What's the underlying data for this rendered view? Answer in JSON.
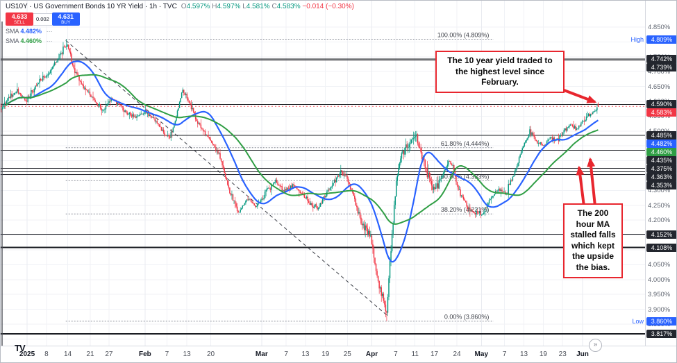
{
  "header": {
    "symbol_title": "US10Y · US Government Bonds 10 YR Yield · 1h · TVC",
    "ohlc": {
      "oL": "O",
      "o": "4.597%",
      "hL": "H",
      "h": "4.597%",
      "lL": "L",
      "l": "4.581%",
      "cL": "C",
      "c": "4.583%",
      "chg": "−0.014 (−0.30%)"
    },
    "sell_price": "4.633",
    "sell_label": "SELL",
    "spread": "0.002",
    "buy_price": "4.631",
    "buy_label": "BUY",
    "sma100_label": "SMA",
    "sma100_value": "4.482%",
    "sma200_label": "SMA",
    "sma200_value": "4.460%",
    "sma_options_icon": "⋯"
  },
  "annotations": {
    "top_text": "The 10 year yield traded to the highest level since February.",
    "side_text": "The 200 hour MA stalled falls which kept the upside the bias."
  },
  "footer": {
    "logo_text": "TV",
    "goto_icon": "»"
  },
  "colors": {
    "up": "#089981",
    "down": "#f23645",
    "sma100": "#2962ff",
    "sma200": "#2f9e44",
    "level": "#1a1c22",
    "badge_bg": "#23262e",
    "current_bg": "#f23645",
    "highlow": "#2962ff",
    "annotation": "#e8262e",
    "grid": "#f0f2f6",
    "fib": "#8a8d98",
    "trend": "#3a3d45"
  },
  "chart_data": {
    "type": "candlestick",
    "title": "US10Y US Government Bonds 10 YR Yield",
    "timeframe": "1h",
    "exchange": "TVC",
    "unit": "%",
    "current": {
      "open": 4.597,
      "high": 4.597,
      "low": 4.581,
      "price": 4.583,
      "change": -0.014,
      "change_pct": -0.3
    },
    "session_high": 4.809,
    "session_low": 3.86,
    "high_label": "High",
    "low_label": "Low",
    "sma100": 4.482,
    "sma200": 4.46,
    "y_axis": {
      "min": 3.85,
      "max": 4.85,
      "step": 0.05,
      "grid": true
    },
    "horizontal_levels": [
      4.742,
      4.739,
      4.59,
      4.485,
      4.435,
      4.375,
      4.363,
      4.353,
      4.152,
      4.108,
      3.817
    ],
    "fib": {
      "from": 4.809,
      "to": 3.86,
      "levels": [
        {
          "pct": "100.00%",
          "value": 4.809
        },
        {
          "pct": "61.80%",
          "value": 4.444
        },
        {
          "pct": "50.00%",
          "value": 4.333
        },
        {
          "pct": "38.20%",
          "value": 4.221
        },
        {
          "pct": "0.00%",
          "value": 3.86
        }
      ]
    },
    "trendline": {
      "x1f": 0.101,
      "v1": 4.805,
      "x2f": 0.602,
      "v2": 3.875
    },
    "x_ticks": [
      {
        "label": "2025",
        "f": 0.041,
        "bold": true
      },
      {
        "label": "8",
        "f": 0.071
      },
      {
        "label": "14",
        "f": 0.104
      },
      {
        "label": "21",
        "f": 0.139
      },
      {
        "label": "27",
        "f": 0.168
      },
      {
        "label": "Feb",
        "f": 0.224,
        "bold": true
      },
      {
        "label": "7",
        "f": 0.258
      },
      {
        "label": "13",
        "f": 0.289
      },
      {
        "label": "20",
        "f": 0.326
      },
      {
        "label": "Mar",
        "f": 0.405,
        "bold": true
      },
      {
        "label": "7",
        "f": 0.443
      },
      {
        "label": "13",
        "f": 0.473
      },
      {
        "label": "19",
        "f": 0.504
      },
      {
        "label": "25",
        "f": 0.538
      },
      {
        "label": "Apr",
        "f": 0.576,
        "bold": true
      },
      {
        "label": "7",
        "f": 0.613
      },
      {
        "label": "11",
        "f": 0.643
      },
      {
        "label": "17",
        "f": 0.673
      },
      {
        "label": "24",
        "f": 0.708
      },
      {
        "label": "May",
        "f": 0.746,
        "bold": true
      },
      {
        "label": "7",
        "f": 0.782
      },
      {
        "label": "13",
        "f": 0.812
      },
      {
        "label": "19",
        "f": 0.842
      },
      {
        "label": "23",
        "f": 0.872
      },
      {
        "label": "Jun",
        "f": 0.903,
        "bold": true
      }
    ],
    "price_path": [
      [
        0.0,
        4.575
      ],
      [
        0.012,
        4.61
      ],
      [
        0.025,
        4.635
      ],
      [
        0.04,
        4.6
      ],
      [
        0.055,
        4.655
      ],
      [
        0.072,
        4.69
      ],
      [
        0.086,
        4.73
      ],
      [
        0.098,
        4.78
      ],
      [
        0.104,
        4.79
      ],
      [
        0.112,
        4.72
      ],
      [
        0.122,
        4.67
      ],
      [
        0.132,
        4.64
      ],
      [
        0.141,
        4.615
      ],
      [
        0.152,
        4.585
      ],
      [
        0.161,
        4.57
      ],
      [
        0.17,
        4.61
      ],
      [
        0.182,
        4.595
      ],
      [
        0.196,
        4.56
      ],
      [
        0.21,
        4.545
      ],
      [
        0.224,
        4.565
      ],
      [
        0.238,
        4.54
      ],
      [
        0.252,
        4.495
      ],
      [
        0.262,
        4.475
      ],
      [
        0.272,
        4.545
      ],
      [
        0.282,
        4.64
      ],
      [
        0.292,
        4.6
      ],
      [
        0.303,
        4.54
      ],
      [
        0.315,
        4.5
      ],
      [
        0.327,
        4.46
      ],
      [
        0.34,
        4.42
      ],
      [
        0.355,
        4.295
      ],
      [
        0.369,
        4.225
      ],
      [
        0.383,
        4.275
      ],
      [
        0.398,
        4.245
      ],
      [
        0.412,
        4.3
      ],
      [
        0.426,
        4.33
      ],
      [
        0.44,
        4.3
      ],
      [
        0.453,
        4.32
      ],
      [
        0.466,
        4.29
      ],
      [
        0.48,
        4.255
      ],
      [
        0.492,
        4.24
      ],
      [
        0.505,
        4.29
      ],
      [
        0.517,
        4.33
      ],
      [
        0.528,
        4.36
      ],
      [
        0.54,
        4.33
      ],
      [
        0.552,
        4.25
      ],
      [
        0.563,
        4.18
      ],
      [
        0.574,
        4.15
      ],
      [
        0.584,
        4.01
      ],
      [
        0.592,
        3.95
      ],
      [
        0.599,
        3.89
      ],
      [
        0.606,
        4.12
      ],
      [
        0.614,
        4.33
      ],
      [
        0.622,
        4.42
      ],
      [
        0.632,
        4.45
      ],
      [
        0.644,
        4.49
      ],
      [
        0.656,
        4.4
      ],
      [
        0.666,
        4.33
      ],
      [
        0.674,
        4.3
      ],
      [
        0.686,
        4.355
      ],
      [
        0.696,
        4.4
      ],
      [
        0.702,
        4.38
      ],
      [
        0.71,
        4.3
      ],
      [
        0.722,
        4.255
      ],
      [
        0.734,
        4.225
      ],
      [
        0.748,
        4.22
      ],
      [
        0.762,
        4.28
      ],
      [
        0.772,
        4.3
      ],
      [
        0.784,
        4.29
      ],
      [
        0.796,
        4.35
      ],
      [
        0.806,
        4.42
      ],
      [
        0.814,
        4.465
      ],
      [
        0.822,
        4.5
      ],
      [
        0.832,
        4.462
      ],
      [
        0.843,
        4.45
      ],
      [
        0.853,
        4.48
      ],
      [
        0.863,
        4.47
      ],
      [
        0.874,
        4.5
      ],
      [
        0.884,
        4.52
      ],
      [
        0.895,
        4.51
      ],
      [
        0.905,
        4.535
      ],
      [
        0.916,
        4.555
      ],
      [
        0.928,
        4.583
      ]
    ]
  }
}
